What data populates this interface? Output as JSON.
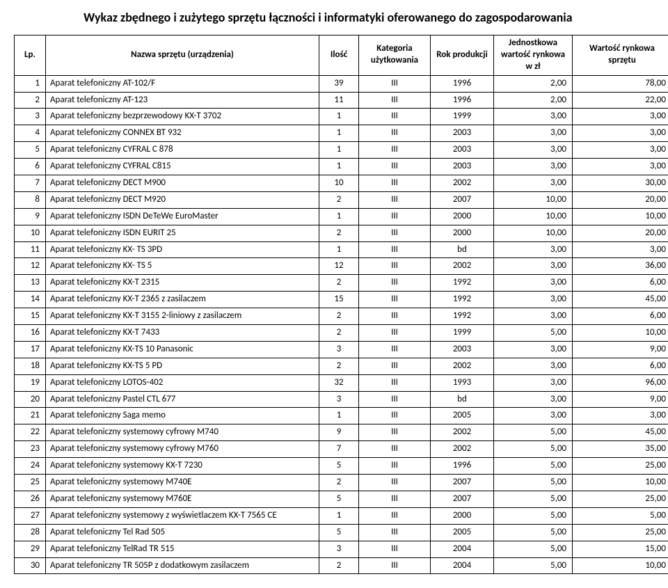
{
  "title": "Wykaz zbędnego i zużytego sprzętu łączności i informatyki oferowanego do zagospodarowania",
  "headers": {
    "lp": "Lp.",
    "name": "Nazwa sprzętu (urządzenia)",
    "qty": "Ilość",
    "category": "Kategoria użytkowania",
    "year": "Rok produkcji",
    "unit_value": "Jednostkowa wartość rynkowa w zł",
    "market_value": "Wartość rynkowa sprzętu"
  },
  "rows": [
    {
      "lp": "1",
      "name": "Aparat telefoniczny AT-102/F",
      "qty": "39",
      "cat": "III",
      "year": "1996",
      "unit": "2,00",
      "val": "78,00"
    },
    {
      "lp": "2",
      "name": "Aparat telefoniczny AT-123",
      "qty": "11",
      "cat": "III",
      "year": "1996",
      "unit": "2,00",
      "val": "22,00"
    },
    {
      "lp": "3",
      "name": "Aparat telefoniczny bezprzewodowy KX-T 3702",
      "qty": "1",
      "cat": "III",
      "year": "1999",
      "unit": "3,00",
      "val": "3,00"
    },
    {
      "lp": "4",
      "name": "Aparat telefoniczny CONNEX BT 932",
      "qty": "1",
      "cat": "III",
      "year": "2003",
      "unit": "3,00",
      "val": "3,00"
    },
    {
      "lp": "5",
      "name": "Aparat telefoniczny CYFRAL C 878",
      "qty": "1",
      "cat": "III",
      "year": "2003",
      "unit": "3,00",
      "val": "3,00"
    },
    {
      "lp": "6",
      "name": "Aparat telefoniczny CYFRAL C815",
      "qty": "1",
      "cat": "III",
      "year": "2003",
      "unit": "3,00",
      "val": "3,00"
    },
    {
      "lp": "7",
      "name": "Aparat telefoniczny DECT M900",
      "qty": "10",
      "cat": "III",
      "year": "2002",
      "unit": "3,00",
      "val": "30,00"
    },
    {
      "lp": "8",
      "name": "Aparat telefoniczny DECT M920",
      "qty": "2",
      "cat": "III",
      "year": "2007",
      "unit": "10,00",
      "val": "20,00"
    },
    {
      "lp": "9",
      "name": "Aparat telefoniczny ISDN DeTeWe EuroMaster",
      "qty": "1",
      "cat": "III",
      "year": "2000",
      "unit": "10,00",
      "val": "10,00"
    },
    {
      "lp": "10",
      "name": "Aparat telefoniczny ISDN EURIT 25",
      "qty": "2",
      "cat": "III",
      "year": "2000",
      "unit": "10,00",
      "val": "20,00"
    },
    {
      "lp": "11",
      "name": "Aparat telefoniczny KX- TS 3PD",
      "qty": "1",
      "cat": "III",
      "year": "bd",
      "unit": "3,00",
      "val": "3,00"
    },
    {
      "lp": "12",
      "name": "Aparat telefoniczny KX- TS 5",
      "qty": "12",
      "cat": "III",
      "year": "2002",
      "unit": "3,00",
      "val": "36,00"
    },
    {
      "lp": "13",
      "name": "Aparat telefoniczny KX-T 2315",
      "qty": "2",
      "cat": "III",
      "year": "1992",
      "unit": "3,00",
      "val": "6,00"
    },
    {
      "lp": "14",
      "name": "Aparat telefoniczny KX-T 2365 z zasilaczem",
      "qty": "15",
      "cat": "III",
      "year": "1992",
      "unit": "3,00",
      "val": "45,00"
    },
    {
      "lp": "15",
      "name": "Aparat telefoniczny KX-T 3155 2-liniowy z zasilaczem",
      "qty": "2",
      "cat": "III",
      "year": "1992",
      "unit": "3,00",
      "val": "6,00"
    },
    {
      "lp": "16",
      "name": "Aparat telefoniczny KX-T 7433",
      "qty": "2",
      "cat": "III",
      "year": "1999",
      "unit": "5,00",
      "val": "10,00"
    },
    {
      "lp": "17",
      "name": "Aparat telefoniczny KX-TS 10 Panasonic",
      "qty": "3",
      "cat": "III",
      "year": "2003",
      "unit": "3,00",
      "val": "9,00"
    },
    {
      "lp": "18",
      "name": "Aparat telefoniczny KX-TS 5 PD",
      "qty": "2",
      "cat": "III",
      "year": "2002",
      "unit": "3,00",
      "val": "6,00"
    },
    {
      "lp": "19",
      "name": "Aparat telefoniczny LOTOS-402",
      "qty": "32",
      "cat": "III",
      "year": "1993",
      "unit": "3,00",
      "val": "96,00"
    },
    {
      "lp": "20",
      "name": "Aparat telefoniczny Pastel CTL 677",
      "qty": "3",
      "cat": "III",
      "year": "bd",
      "unit": "3,00",
      "val": "9,00"
    },
    {
      "lp": "21",
      "name": "Aparat telefoniczny Saga memo",
      "qty": "1",
      "cat": "III",
      "year": "2005",
      "unit": "3,00",
      "val": "3,00"
    },
    {
      "lp": "22",
      "name": "Aparat telefoniczny systemowy cyfrowy M740",
      "qty": "9",
      "cat": "III",
      "year": "2002",
      "unit": "5,00",
      "val": "45,00"
    },
    {
      "lp": "23",
      "name": "Aparat telefoniczny systemowy cyfrowy M760",
      "qty": "7",
      "cat": "III",
      "year": "2002",
      "unit": "5,00",
      "val": "35,00"
    },
    {
      "lp": "24",
      "name": "Aparat telefoniczny systemowy KX-T 7230",
      "qty": "5",
      "cat": "III",
      "year": "1996",
      "unit": "5,00",
      "val": "25,00"
    },
    {
      "lp": "25",
      "name": "Aparat telefoniczny systemowy M740E",
      "qty": "2",
      "cat": "III",
      "year": "2007",
      "unit": "5,00",
      "val": "10,00"
    },
    {
      "lp": "26",
      "name": "Aparat telefoniczny systemowy M760E",
      "qty": "5",
      "cat": "III",
      "year": "2007",
      "unit": "5,00",
      "val": "25,00"
    },
    {
      "lp": "27",
      "name": "Aparat telefoniczny systemowy z wyświetlaczem KX-T 7565 CE",
      "qty": "1",
      "cat": "III",
      "year": "2000",
      "unit": "5,00",
      "val": "5,00"
    },
    {
      "lp": "28",
      "name": "Aparat telefoniczny Tel Rad 505",
      "qty": "5",
      "cat": "III",
      "year": "2005",
      "unit": "5,00",
      "val": "25,00"
    },
    {
      "lp": "29",
      "name": "Aparat telefoniczny TelRad TR 515",
      "qty": "3",
      "cat": "III",
      "year": "2004",
      "unit": "5,00",
      "val": "15,00"
    },
    {
      "lp": "30",
      "name": "Aparat telefoniczny TR 505P z dodatkowym zasilaczem",
      "qty": "2",
      "cat": "III",
      "year": "2004",
      "unit": "5,00",
      "val": "10,00"
    }
  ]
}
